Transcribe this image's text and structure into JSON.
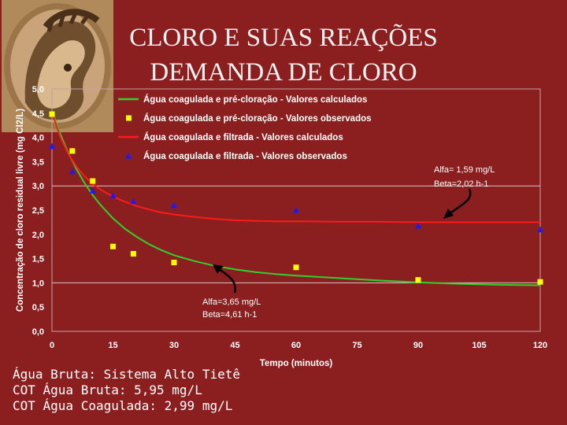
{
  "slide": {
    "title_line1": "CLORO E SUAS REAÇÕES",
    "title_line2": "DEMANDA DE CLORO",
    "footer": [
      "Água Bruta: Sistema Alto Tietê",
      "COT Água Bruta: 5,95 mg/L",
      "COT Água Coagulada: 2,99 mg/L"
    ]
  },
  "chart_data": {
    "type": "scatter",
    "title": "",
    "xlabel": "Tempo (minutos)",
    "ylabel": "Concentração de cloro residual livre (mg Cl2/L)",
    "xlim": [
      0,
      120
    ],
    "ylim": [
      0,
      5
    ],
    "xticks": [
      0,
      15,
      30,
      45,
      60,
      75,
      90,
      105,
      120
    ],
    "xtick_labels": [
      "0",
      "15",
      "30",
      "45",
      "60",
      "75",
      "90",
      "105",
      "120"
    ],
    "yticks": [
      0,
      0.5,
      1,
      1.5,
      2,
      2.5,
      3,
      3.5,
      4,
      4.5,
      5
    ],
    "ytick_labels": [
      "0,0",
      "0,5",
      "1,0",
      "1,5",
      "2,0",
      "2,5",
      "3,0",
      "3,5",
      "4,0",
      "4,5",
      "5,0"
    ],
    "grid": "horizontal line at 3,0 and 1,0",
    "legend_position": "top",
    "series": [
      {
        "name": "Água coagulada e pré-cloração - Valores calculados",
        "kind": "line",
        "color": "#2fd12f",
        "x": [
          0,
          2,
          4,
          6,
          8,
          10,
          12,
          15,
          18,
          21,
          24,
          27,
          30,
          35,
          40,
          45,
          50,
          55,
          60,
          70,
          80,
          90,
          100,
          110,
          120
        ],
        "y": [
          4.55,
          4.08,
          3.68,
          3.35,
          3.06,
          2.81,
          2.6,
          2.33,
          2.11,
          1.94,
          1.79,
          1.67,
          1.57,
          1.45,
          1.35,
          1.28,
          1.22,
          1.18,
          1.15,
          1.1,
          1.05,
          1.01,
          0.98,
          0.96,
          0.95
        ]
      },
      {
        "name": "Água coagulada e pré-cloração - Valores observados",
        "kind": "markers",
        "color": "#ffff00",
        "marker": "square",
        "x": [
          0,
          5,
          10,
          15,
          20,
          30,
          60,
          90,
          120
        ],
        "y": [
          4.48,
          3.72,
          3.1,
          1.75,
          1.6,
          1.42,
          1.32,
          1.06,
          1.02
        ]
      },
      {
        "name": "Água coagulada e filtrada - Valores calculados",
        "kind": "line",
        "color": "#ff1a1a",
        "x": [
          0,
          2,
          4,
          6,
          8,
          10,
          12,
          15,
          18,
          21,
          24,
          27,
          30,
          35,
          40,
          45,
          50,
          55,
          60,
          70,
          80,
          90,
          100,
          110,
          120
        ],
        "y": [
          4.52,
          4.02,
          3.66,
          3.4,
          3.2,
          3.04,
          2.92,
          2.78,
          2.67,
          2.58,
          2.51,
          2.45,
          2.41,
          2.36,
          2.32,
          2.29,
          2.28,
          2.27,
          2.27,
          2.26,
          2.26,
          2.25,
          2.25,
          2.25,
          2.25
        ]
      },
      {
        "name": "Água coagulada e filtrada - Valores observados",
        "kind": "markers",
        "color": "#1a1aff",
        "marker": "triangle",
        "x": [
          0,
          5,
          10,
          15,
          20,
          30,
          60,
          90,
          120
        ],
        "y": [
          3.82,
          3.3,
          2.9,
          2.8,
          2.68,
          2.6,
          2.5,
          2.18,
          2.1
        ]
      }
    ],
    "annotations": [
      {
        "lines": [
          "Alfa= 1,59 mg/L",
          "Beta=2,02 h-1"
        ],
        "points_to": "Água coagulada e filtrada - Valores calculados"
      },
      {
        "lines": [
          "Alfa=3,65 mg/L",
          "Beta=4,61 h-1"
        ],
        "points_to": "Água coagulada e pré-cloração - Valores calculados"
      }
    ]
  }
}
